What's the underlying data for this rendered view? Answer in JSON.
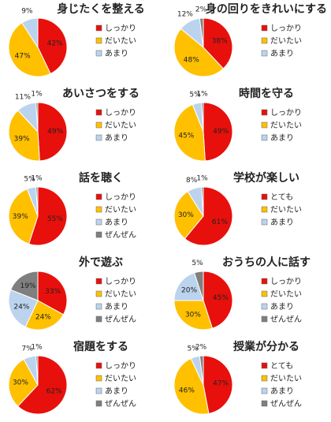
{
  "chart_data": [
    {
      "type": "pie",
      "title": "身じたくを整える",
      "categories": [
        "しっかり",
        "だいたい",
        "あまり"
      ],
      "values": [
        42,
        47,
        9
      ],
      "value_labels": [
        "42%",
        "47%",
        "9%"
      ],
      "colors": [
        "#e8100c",
        "#ffc000",
        "#bcd3ee"
      ]
    },
    {
      "type": "pie",
      "title": "身の回りをきれいにする",
      "categories": [
        "しっかり",
        "だいたい",
        "あまり",
        null
      ],
      "values": [
        38,
        48,
        12,
        2
      ],
      "value_labels": [
        "38%",
        "48%",
        "12%",
        "2%"
      ],
      "colors": [
        "#e8100c",
        "#ffc000",
        "#bcd3ee",
        "#7f7f7f"
      ]
    },
    {
      "type": "pie",
      "title": "あいさつをする",
      "categories": [
        "しっかり",
        "だいたい",
        "あまり",
        null
      ],
      "values": [
        49,
        39,
        11,
        1
      ],
      "value_labels": [
        "49%",
        "39%",
        "11%",
        "1%"
      ],
      "colors": [
        "#e8100c",
        "#ffc000",
        "#bcd3ee",
        "#7f7f7f"
      ]
    },
    {
      "type": "pie",
      "title": "時間を守る",
      "categories": [
        "しっかり",
        "だいたい",
        "あまり",
        null
      ],
      "values": [
        49,
        45,
        5,
        1
      ],
      "value_labels": [
        "49%",
        "45%",
        "5%",
        "1%"
      ],
      "colors": [
        "#e8100c",
        "#ffc000",
        "#bcd3ee",
        "#7f7f7f"
      ]
    },
    {
      "type": "pie",
      "title": "話を聴く",
      "categories": [
        "しっかり",
        "だいたい",
        "あまり",
        "ぜんぜん"
      ],
      "values": [
        55,
        39,
        5,
        1
      ],
      "value_labels": [
        "55%",
        "39%",
        "5%",
        "1%"
      ],
      "colors": [
        "#e8100c",
        "#ffc000",
        "#bcd3ee",
        "#7f7f7f"
      ]
    },
    {
      "type": "pie",
      "title": "学校が楽しい",
      "categories": [
        "とても",
        "だいたい",
        "あまり",
        null
      ],
      "values": [
        61,
        30,
        8,
        1
      ],
      "value_labels": [
        "61%",
        "30%",
        "8%",
        "1%"
      ],
      "colors": [
        "#e8100c",
        "#ffc000",
        "#bcd3ee",
        "#7f7f7f"
      ]
    },
    {
      "type": "pie",
      "title": "外で遊ぶ",
      "categories": [
        "しっかり",
        "だいたい",
        "あまり",
        "ぜんぜん"
      ],
      "values": [
        33,
        24,
        24,
        19
      ],
      "value_labels": [
        "33%",
        "24%",
        "24%",
        "19%"
      ],
      "colors": [
        "#e8100c",
        "#ffc000",
        "#bcd3ee",
        "#7f7f7f"
      ]
    },
    {
      "type": "pie",
      "title": "おうちの人に話す",
      "categories": [
        "しっかり",
        "だいたい",
        "あまり",
        "ぜんぜん"
      ],
      "values": [
        45,
        30,
        20,
        5
      ],
      "value_labels": [
        "45%",
        "30%",
        "20%",
        "5%"
      ],
      "colors": [
        "#e8100c",
        "#ffc000",
        "#bcd3ee",
        "#7f7f7f"
      ]
    },
    {
      "type": "pie",
      "title": "宿題をする",
      "categories": [
        "しっかり",
        "だいたい",
        "あまり",
        "ぜんぜん"
      ],
      "values": [
        62,
        30,
        7,
        1
      ],
      "value_labels": [
        "62%",
        "30%",
        "7%",
        "1%"
      ],
      "colors": [
        "#e8100c",
        "#ffc000",
        "#bcd3ee",
        "#7f7f7f"
      ]
    },
    {
      "type": "pie",
      "title": "授業が分かる",
      "categories": [
        "とても",
        "だいたい",
        "あまり",
        "ぜんぜん"
      ],
      "values": [
        47,
        46,
        5,
        2
      ],
      "value_labels": [
        "47%",
        "46%",
        "5%",
        "2%"
      ],
      "colors": [
        "#e8100c",
        "#ffc000",
        "#bcd3ee",
        "#7f7f7f"
      ]
    }
  ]
}
